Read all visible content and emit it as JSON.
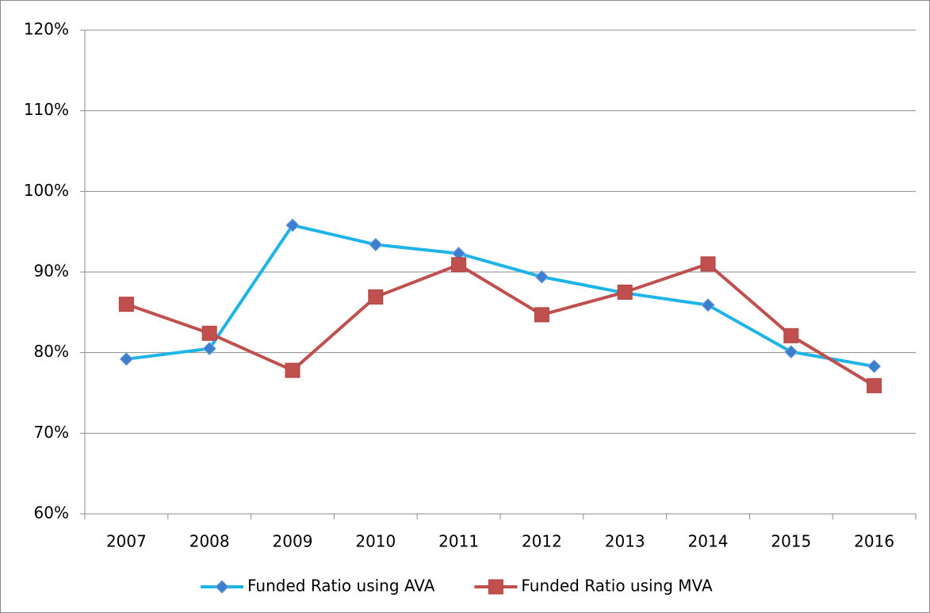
{
  "chart_data": {
    "type": "line",
    "categories": [
      "2007",
      "2008",
      "2009",
      "2010",
      "2011",
      "2012",
      "2013",
      "2014",
      "2015",
      "2016"
    ],
    "series": [
      {
        "name": "Funded Ratio using AVA",
        "color": "#1fb4e8",
        "marker": "diamond",
        "marker_color": "#3a7fd0",
        "values": [
          79.2,
          80.5,
          95.8,
          93.4,
          92.3,
          89.4,
          87.4,
          85.9,
          80.1,
          78.3
        ]
      },
      {
        "name": "Funded Ratio using MVA",
        "color": "#c0504d",
        "marker": "square",
        "marker_color": "#c0504d",
        "values": [
          86.0,
          82.4,
          77.8,
          86.9,
          90.9,
          84.7,
          87.5,
          91.0,
          82.1,
          75.9
        ]
      }
    ],
    "ylim": [
      60,
      120
    ],
    "yticks": [
      {
        "value": 60,
        "label": "60%"
      },
      {
        "value": 70,
        "label": "70%"
      },
      {
        "value": 80,
        "label": "80%"
      },
      {
        "value": 90,
        "label": "90%"
      },
      {
        "value": 100,
        "label": "100%"
      },
      {
        "value": 110,
        "label": "110%"
      },
      {
        "value": 120,
        "label": "120%"
      }
    ],
    "grid": true,
    "legend": "bottom"
  }
}
